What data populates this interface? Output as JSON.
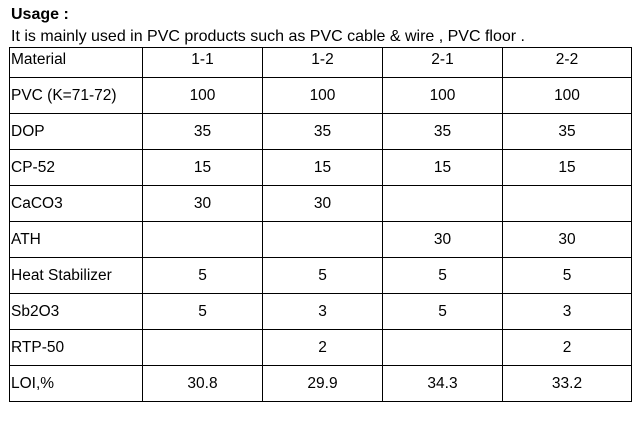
{
  "usage": {
    "heading": "Usage :",
    "text": "It is mainly used in PVC products such as PVC cable & wire , PVC floor ."
  },
  "table": {
    "header": [
      "Material",
      "1-1",
      "1-2",
      "2-1",
      "2-2"
    ],
    "rows": [
      {
        "label": "PVC (K=71-72)",
        "values": [
          "100",
          "100",
          "100",
          "100"
        ]
      },
      {
        "label": "DOP",
        "values": [
          "35",
          "35",
          "35",
          "35"
        ]
      },
      {
        "label": "CP-52",
        "values": [
          "15",
          "15",
          "15",
          "15"
        ]
      },
      {
        "label": "CaCO3",
        "values": [
          "30",
          "30",
          "",
          ""
        ]
      },
      {
        "label": "ATH",
        "values": [
          "",
          "",
          "30",
          "30"
        ]
      },
      {
        "label": "Heat Stabilizer",
        "values": [
          "5",
          "5",
          "5",
          "5"
        ]
      },
      {
        "label": "Sb2O3",
        "values": [
          "5",
          "3",
          "5",
          "3"
        ]
      },
      {
        "label": "RTP-50",
        "values": [
          "",
          "2",
          "",
          "2"
        ]
      },
      {
        "label": "LOI,%",
        "values": [
          "30.8",
          "29.9",
          "34.3",
          "33.2"
        ]
      }
    ]
  }
}
